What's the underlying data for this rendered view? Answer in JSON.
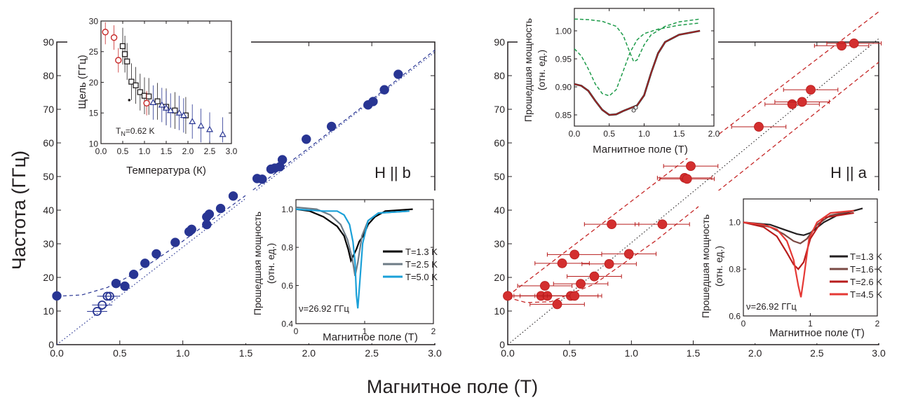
{
  "figure": {
    "shared_xlabel": "Магнитное поле (Т)",
    "shared_ylabel": "Частота (ГГц)"
  },
  "colors": {
    "navy": "#283593",
    "red": "#c62828",
    "dark_red": "#b71c1c",
    "green": "#1e9b4a",
    "black": "#231f20",
    "gray": "#5f7a88",
    "cyan": "#1aa0d8",
    "brown": "#7a4a44"
  },
  "chart_data": [
    {
      "id": "main-left",
      "type": "scatter",
      "annotation": "H || b",
      "xlim": [
        0,
        3.0
      ],
      "ylim": [
        0,
        90
      ],
      "xticks": [
        "0.0",
        "0.5",
        "1.0",
        "1.5",
        "2.0",
        "2.5",
        "3.0"
      ],
      "yticks": [
        "0",
        "10",
        "20",
        "30",
        "40",
        "50",
        "60",
        "70",
        "80",
        "90"
      ],
      "filled_points": [
        [
          0.0,
          14.5
        ],
        [
          0.47,
          18.2
        ],
        [
          0.54,
          17.4
        ],
        [
          0.61,
          20.9
        ],
        [
          0.7,
          24.2
        ],
        [
          0.79,
          27.0
        ],
        [
          0.94,
          30.4
        ],
        [
          1.05,
          33.6
        ],
        [
          1.07,
          34.3
        ],
        [
          1.19,
          35.7
        ],
        [
          1.19,
          38.0
        ],
        [
          1.21,
          38.8
        ],
        [
          1.3,
          40.5
        ],
        [
          1.4,
          44.2
        ],
        [
          1.59,
          49.4
        ],
        [
          1.63,
          49.2
        ],
        [
          1.7,
          52.2
        ],
        [
          1.73,
          52.5
        ],
        [
          1.77,
          52.9
        ],
        [
          1.79,
          55.0
        ],
        [
          1.98,
          61.1
        ],
        [
          2.18,
          64.9
        ],
        [
          2.47,
          71.3
        ],
        [
          2.51,
          72.3
        ],
        [
          2.6,
          75.8
        ],
        [
          2.71,
          80.4
        ]
      ],
      "open_points": [
        [
          0.32,
          9.9
        ],
        [
          0.36,
          11.8
        ],
        [
          0.4,
          14.4
        ],
        [
          0.42,
          14.4
        ]
      ],
      "fit_upper": [
        [
          0.0,
          14.4
        ],
        [
          0.2,
          14.8
        ],
        [
          0.4,
          17.0
        ],
        [
          0.6,
          20.8
        ],
        [
          0.8,
          25.6
        ],
        [
          1.0,
          30.8
        ],
        [
          1.5,
          44.4
        ],
        [
          2.0,
          58.5
        ],
        [
          2.5,
          72.9
        ],
        [
          3.0,
          87.6
        ]
      ],
      "fit_lower": [
        [
          0.0,
          0.0
        ],
        [
          3.0,
          87.0
        ]
      ]
    },
    {
      "id": "inset-gap",
      "type": "scatter",
      "xlabel": "Температура (К)",
      "ylabel": "Щель (ГГц)",
      "annotation_prefix": "T",
      "annotation_sub": "N",
      "annotation_value": "=0.62 K",
      "xlim": [
        0,
        3.0
      ],
      "ylim": [
        10,
        30
      ],
      "xticks": [
        "0.0",
        "0.5",
        "1.0",
        "1.5",
        "2.0",
        "2.5",
        "3.0"
      ],
      "yticks": [
        "10",
        "15",
        "20",
        "25",
        "30"
      ],
      "red_circles": [
        [
          0.1,
          28.2
        ],
        [
          0.3,
          27.3
        ],
        [
          0.4,
          23.6
        ],
        [
          1.05,
          16.6
        ]
      ],
      "black_squares": [
        [
          0.5,
          25.9
        ],
        [
          0.55,
          24.6
        ],
        [
          0.6,
          23.4
        ],
        [
          0.7,
          20.1
        ],
        [
          0.8,
          19.5
        ],
        [
          0.9,
          18.4
        ],
        [
          1.0,
          17.8
        ],
        [
          1.1,
          17.7
        ],
        [
          1.3,
          16.9
        ],
        [
          1.5,
          16.0
        ],
        [
          1.7,
          15.4
        ],
        [
          1.95,
          14.6
        ]
      ],
      "blue_triangles": [
        [
          1.2,
          16.7
        ],
        [
          1.4,
          16.3
        ],
        [
          1.5,
          15.8
        ],
        [
          1.6,
          15.4
        ],
        [
          1.8,
          15.0
        ],
        [
          1.9,
          14.6
        ],
        [
          2.1,
          13.6
        ],
        [
          2.3,
          12.9
        ],
        [
          2.5,
          12.3
        ],
        [
          2.8,
          11.5
        ]
      ],
      "small_black": [
        [
          0.65,
          17.1
        ]
      ]
    },
    {
      "id": "inset-b-spectra",
      "type": "line",
      "xlabel": "Магнитное поле (Т)",
      "ylabel_line1": "Прошедшая мощность",
      "ylabel_line2": "(отн. ед.)",
      "annotation": "ν=26.92 ГГц",
      "xlim": [
        0,
        2
      ],
      "ylim": [
        0.4,
        1.05
      ],
      "xticks": [
        "0",
        "1",
        "2"
      ],
      "yticks": [
        "0.4",
        "0.6",
        "0.8",
        "1.0"
      ],
      "series": [
        {
          "name": "T=1.3 K",
          "color": "#000000",
          "points": [
            [
              0.0,
              1.0
            ],
            [
              0.2,
              0.99
            ],
            [
              0.4,
              0.96
            ],
            [
              0.6,
              0.91
            ],
            [
              0.7,
              0.86
            ],
            [
              0.76,
              0.79
            ],
            [
              0.8,
              0.73
            ],
            [
              0.84,
              0.76
            ],
            [
              0.88,
              0.79
            ],
            [
              0.92,
              0.83
            ],
            [
              0.98,
              0.86
            ],
            [
              1.05,
              0.92
            ],
            [
              1.15,
              0.96
            ],
            [
              1.3,
              0.99
            ],
            [
              1.7,
              1.0
            ]
          ]
        },
        {
          "name": "T=2.5 K",
          "color": "#6d7b86",
          "points": [
            [
              0.0,
              1.01
            ],
            [
              0.3,
              1.0
            ],
            [
              0.5,
              0.97
            ],
            [
              0.65,
              0.92
            ],
            [
              0.75,
              0.84
            ],
            [
              0.82,
              0.74
            ],
            [
              0.86,
              0.65
            ],
            [
              0.9,
              0.72
            ],
            [
              0.96,
              0.86
            ],
            [
              1.05,
              0.94
            ],
            [
              1.2,
              0.98
            ],
            [
              1.65,
              0.99
            ]
          ]
        },
        {
          "name": "T=5.0 K",
          "color": "#1aa0d8",
          "points": [
            [
              0.0,
              1.0
            ],
            [
              0.4,
              0.99
            ],
            [
              0.6,
              0.99
            ],
            [
              0.7,
              0.97
            ],
            [
              0.78,
              0.92
            ],
            [
              0.83,
              0.83
            ],
            [
              0.86,
              0.72
            ],
            [
              0.88,
              0.55
            ],
            [
              0.9,
              0.48
            ],
            [
              0.93,
              0.62
            ],
            [
              0.97,
              0.82
            ],
            [
              1.05,
              0.94
            ],
            [
              1.2,
              0.98
            ],
            [
              1.65,
              0.99
            ]
          ]
        }
      ]
    },
    {
      "id": "main-right",
      "type": "scatter",
      "annotation": "H || a",
      "xlim": [
        0,
        3.0
      ],
      "ylim": [
        0,
        90
      ],
      "xticks": [
        "0.0",
        "0.5",
        "1.0",
        "1.5",
        "2.0",
        "2.5",
        "3.0"
      ],
      "yticks": [
        "0",
        "10",
        "20",
        "30",
        "40",
        "50",
        "60",
        "70",
        "80",
        "90"
      ],
      "points": [
        [
          0.0,
          14.5
        ],
        [
          0.27,
          14.5
        ],
        [
          0.3,
          17.5
        ],
        [
          0.32,
          14.5
        ],
        [
          0.4,
          12.0
        ],
        [
          0.44,
          24.2
        ],
        [
          0.51,
          14.5
        ],
        [
          0.54,
          14.5
        ],
        [
          0.54,
          26.8
        ],
        [
          0.59,
          18.1
        ],
        [
          0.7,
          20.3
        ],
        [
          0.82,
          24.0
        ],
        [
          0.84,
          35.8
        ],
        [
          0.98,
          27.0
        ],
        [
          1.25,
          35.8
        ],
        [
          1.43,
          49.6
        ],
        [
          1.45,
          49.3
        ],
        [
          1.48,
          53.1
        ],
        [
          2.03,
          64.8
        ],
        [
          2.3,
          71.5
        ],
        [
          2.38,
          72.2
        ],
        [
          2.45,
          75.8
        ],
        [
          2.7,
          88.9
        ],
        [
          2.8,
          89.6
        ]
      ],
      "error_half_width": 0.22,
      "dashed_upper": [
        [
          0.0,
          14.5
        ],
        [
          3.0,
          100.0
        ]
      ],
      "dashed_lower": [
        [
          0.0,
          14.0
        ],
        [
          0.15,
          12.5
        ],
        [
          0.35,
          12.8
        ],
        [
          0.7,
          18.0
        ],
        [
          1.2,
          31.0
        ],
        [
          2.0,
          54.5
        ],
        [
          3.0,
          84.0
        ]
      ],
      "dotted": [
        [
          0.0,
          0.0
        ],
        [
          3.0,
          91.0
        ]
      ]
    },
    {
      "id": "inset-a-resonance",
      "type": "line",
      "xlabel": "Магнитное поле (Т)",
      "ylabel_line1": "Прошедшая мощность",
      "ylabel_line2": "(отн. ед.)",
      "xlim": [
        0,
        2.0
      ],
      "ylim": [
        0.83,
        1.04
      ],
      "xticks": [
        "0.0",
        "0.5",
        "1.0",
        "1.5",
        "2.0"
      ],
      "yticks": [
        "0.85",
        "0.90",
        "0.95",
        "1.00"
      ],
      "data": [
        [
          0.0,
          0.905
        ],
        [
          0.1,
          0.902
        ],
        [
          0.2,
          0.893
        ],
        [
          0.3,
          0.875
        ],
        [
          0.4,
          0.859
        ],
        [
          0.5,
          0.85
        ],
        [
          0.6,
          0.851
        ],
        [
          0.7,
          0.857
        ],
        [
          0.8,
          0.862
        ],
        [
          0.9,
          0.867
        ],
        [
          1.0,
          0.885
        ],
        [
          1.1,
          0.925
        ],
        [
          1.2,
          0.96
        ],
        [
          1.3,
          0.98
        ],
        [
          1.5,
          0.993
        ],
        [
          1.8,
          1.0
        ]
      ],
      "fit_green_1": [
        [
          0.0,
          0.968
        ],
        [
          0.1,
          0.955
        ],
        [
          0.2,
          0.932
        ],
        [
          0.3,
          0.905
        ],
        [
          0.4,
          0.888
        ],
        [
          0.5,
          0.884
        ],
        [
          0.6,
          0.895
        ],
        [
          0.7,
          0.928
        ],
        [
          0.8,
          0.962
        ],
        [
          0.9,
          0.984
        ],
        [
          1.0,
          0.995
        ],
        [
          1.2,
          1.003
        ],
        [
          1.5,
          1.01
        ],
        [
          1.8,
          1.014
        ]
      ],
      "fit_green_2": [
        [
          0.0,
          1.021
        ],
        [
          0.2,
          1.02
        ],
        [
          0.4,
          1.017
        ],
        [
          0.6,
          1.008
        ],
        [
          0.7,
          0.992
        ],
        [
          0.8,
          0.96
        ],
        [
          0.85,
          0.945
        ],
        [
          0.9,
          0.948
        ],
        [
          1.0,
          0.975
        ],
        [
          1.1,
          0.993
        ],
        [
          1.3,
          1.008
        ],
        [
          1.5,
          1.016
        ],
        [
          1.8,
          1.021
        ]
      ],
      "open_near_one": [
        [
          0.85,
          0.858
        ],
        [
          0.88,
          0.863
        ]
      ]
    },
    {
      "id": "inset-a-spectra",
      "type": "line",
      "xlabel": "Магнитное поле (Т)",
      "ylabel_line1": "Прошедшая мощность",
      "ylabel_line2": "(отн. ед.)",
      "annotation": "ν=26.92 ГГц",
      "xlim": [
        0,
        2
      ],
      "ylim": [
        0.6,
        1.1
      ],
      "xticks": [
        "0",
        "1",
        "2"
      ],
      "yticks": [
        "0.6",
        "0.8",
        "1.0"
      ],
      "series": [
        {
          "name": "T=1.3 K",
          "color": "#231f20",
          "points": [
            [
              0.0,
              1.0
            ],
            [
              0.4,
              0.99
            ],
            [
              0.6,
              0.97
            ],
            [
              0.8,
              0.95
            ],
            [
              0.9,
              0.945
            ],
            [
              1.0,
              0.955
            ],
            [
              1.2,
              1.0
            ],
            [
              1.4,
              1.03
            ],
            [
              1.78,
              1.06
            ]
          ]
        },
        {
          "name": "T=1.6 K",
          "color": "#7a4a44",
          "points": [
            [
              0.0,
              1.0
            ],
            [
              0.4,
              0.98
            ],
            [
              0.6,
              0.95
            ],
            [
              0.75,
              0.92
            ],
            [
              0.85,
              0.91
            ],
            [
              0.95,
              0.93
            ],
            [
              1.1,
              0.99
            ],
            [
              1.3,
              1.03
            ],
            [
              1.65,
              1.05
            ]
          ]
        },
        {
          "name": "T=2.6 K",
          "color": "#b71c1c",
          "points": [
            [
              0.0,
              1.0
            ],
            [
              0.3,
              0.98
            ],
            [
              0.5,
              0.94
            ],
            [
              0.65,
              0.87
            ],
            [
              0.75,
              0.82
            ],
            [
              0.82,
              0.8
            ],
            [
              0.9,
              0.83
            ],
            [
              1.0,
              0.93
            ],
            [
              1.2,
              1.02
            ],
            [
              1.65,
              1.04
            ]
          ]
        },
        {
          "name": "T=4.5 K",
          "color": "#e53935",
          "points": [
            [
              0.0,
              1.0
            ],
            [
              0.3,
              0.99
            ],
            [
              0.5,
              0.97
            ],
            [
              0.65,
              0.92
            ],
            [
              0.75,
              0.84
            ],
            [
              0.82,
              0.73
            ],
            [
              0.86,
              0.68
            ],
            [
              0.9,
              0.76
            ],
            [
              0.98,
              0.93
            ],
            [
              1.1,
              1.0
            ],
            [
              1.3,
              1.04
            ],
            [
              1.65,
              1.05
            ]
          ]
        }
      ]
    }
  ]
}
